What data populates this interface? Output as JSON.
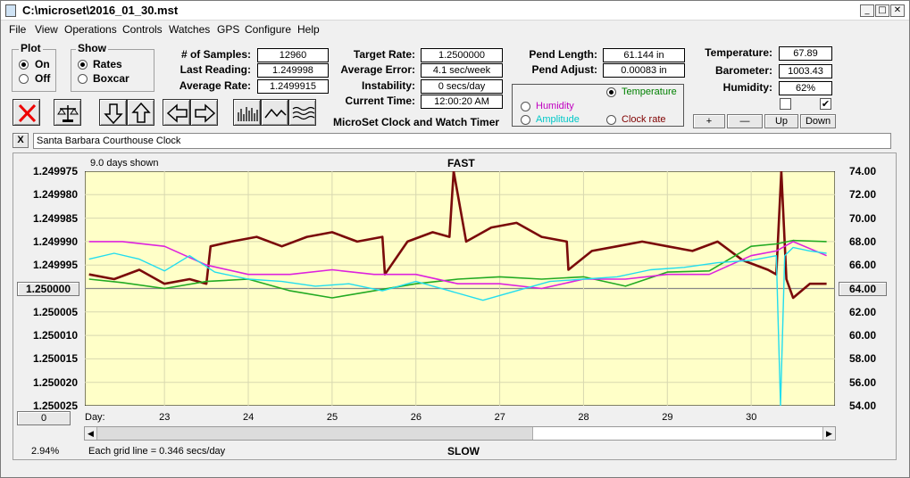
{
  "window": {
    "title": "C:\\microset\\2016_01_30.mst",
    "min_label": "_",
    "max_label": "□",
    "close_label": "✕"
  },
  "menu": [
    "File",
    "View",
    "Operations",
    "Controls",
    "Watches",
    "GPS",
    "Configure",
    "Help"
  ],
  "plot_group": {
    "title": "Plot",
    "on": "On",
    "off": "Off",
    "selected": "On"
  },
  "show_group": {
    "title": "Show",
    "rates": "Rates",
    "boxcar": "Boxcar",
    "selected": "Rates"
  },
  "stats": {
    "samples_label": "# of Samples:",
    "samples": "12960",
    "last_label": "Last Reading:",
    "last": "1.249998",
    "avg_label": "Average Rate:",
    "avg": "1.2499915",
    "target_label": "Target Rate:",
    "target": "1.2500000",
    "avg_err_label": "Average Error:",
    "avg_err": "4.1 sec/week",
    "instab_label": "Instability:",
    "instab": "0 secs/day",
    "time_label": "Current Time:",
    "time": "12:00:20 AM",
    "pend_len_label": "Pend Length:",
    "pend_len": "61.144 in",
    "pend_adj_label": "Pend Adjust:",
    "pend_adj": "0.00083 in",
    "temp_label": "Temperature:",
    "temp": "67.89",
    "baro_label": "Barometer:",
    "baro": "1003.43",
    "hum_label": "Humidity:",
    "hum": "62%"
  },
  "app_name": "MicroSet Clock and Watch Timer",
  "aux_group": {
    "temperature": "Temperature",
    "humidity": "Humidity",
    "amplitude": "Amplitude",
    "clock_rate": "Clock rate",
    "selected": "Temperature"
  },
  "scale_buttons": {
    "plus": "+",
    "minus": "—",
    "up": "Up",
    "down": "Down"
  },
  "check1": false,
  "check2": true,
  "notes": {
    "close": "X",
    "text": "Santa Barbara Courthouse Clock"
  },
  "chart_header": {
    "days_shown": "9.0 days shown",
    "fast": "FAST",
    "slow": "SLOW",
    "grid_note": "Each grid line = 0.346 secs/day",
    "percent": "2.94%",
    "day_label": "Day:",
    "zero_button": "0",
    "left_center": "1.250000",
    "right_center": "64.00"
  },
  "colors": {
    "rate": "#7a0a0a",
    "temperature": "#22aa22",
    "humidity": "#dd22dd",
    "amplitude": "#22ddee",
    "plot_bg": "#ffffc8",
    "temperature_label": "#008000",
    "humidity_label": "#c000c0",
    "amplitude_label": "#00c8c8",
    "clock_rate_label": "#800000"
  },
  "chart_data": {
    "type": "line",
    "title": "FAST",
    "y_left_ticks": [
      "1.249975",
      "1.249980",
      "1.249985",
      "1.249990",
      "1.249995",
      "1.250000",
      "1.250005",
      "1.250010",
      "1.250015",
      "1.250020",
      "1.250025"
    ],
    "y_right_ticks": [
      "74.00",
      "72.00",
      "70.00",
      "68.00",
      "66.00",
      "64.00",
      "62.00",
      "60.00",
      "58.00",
      "56.00",
      "54.00"
    ],
    "y_left_range": [
      1.249975,
      1.250025
    ],
    "y_right_range": [
      54.0,
      74.0
    ],
    "x_ticks": [
      "23",
      "24",
      "25",
      "26",
      "27",
      "28",
      "29",
      "30"
    ],
    "x_range": [
      22.05,
      31.0
    ],
    "series": [
      {
        "name": "Clock rate",
        "axis": "left",
        "x": [
          22.1,
          22.4,
          22.7,
          23.0,
          23.3,
          23.5,
          23.55,
          23.8,
          24.1,
          24.4,
          24.7,
          25.0,
          25.3,
          25.6,
          25.63,
          25.9,
          26.2,
          26.4,
          26.45,
          26.6,
          26.9,
          27.2,
          27.5,
          27.8,
          27.82,
          28.1,
          28.4,
          28.7,
          29.0,
          29.3,
          29.6,
          29.9,
          30.2,
          30.3,
          30.36,
          30.42,
          30.5,
          30.7,
          30.9
        ],
        "y": [
          1.249997,
          1.249998,
          1.249996,
          1.249999,
          1.249998,
          1.249999,
          1.249991,
          1.24999,
          1.249989,
          1.249991,
          1.249989,
          1.249988,
          1.24999,
          1.249989,
          1.249997,
          1.24999,
          1.249988,
          1.249989,
          1.249975,
          1.24999,
          1.249987,
          1.249986,
          1.249989,
          1.24999,
          1.249996,
          1.249992,
          1.249991,
          1.24999,
          1.249991,
          1.249992,
          1.24999,
          1.249994,
          1.249996,
          1.249997,
          1.249975,
          1.249998,
          1.250002,
          1.249999,
          1.249999
        ]
      },
      {
        "name": "Temperature",
        "axis": "right",
        "x": [
          22.1,
          22.5,
          23.0,
          23.5,
          24.0,
          24.5,
          25.0,
          25.5,
          26.0,
          26.5,
          27.0,
          27.5,
          28.0,
          28.5,
          29.0,
          29.5,
          30.0,
          30.3,
          30.5,
          30.9
        ],
        "y": [
          64.8,
          64.5,
          64.0,
          64.6,
          64.8,
          63.8,
          63.2,
          63.8,
          64.4,
          64.8,
          65.0,
          64.8,
          65.0,
          64.2,
          65.4,
          65.5,
          67.6,
          67.8,
          68.1,
          68.0
        ]
      },
      {
        "name": "Humidity",
        "axis": "left",
        "x": [
          22.1,
          22.5,
          23.0,
          23.5,
          24.0,
          24.5,
          25.0,
          25.5,
          26.0,
          26.5,
          27.0,
          27.5,
          28.0,
          28.5,
          29.0,
          29.5,
          30.0,
          30.3,
          30.5,
          30.9
        ],
        "y": [
          1.24999,
          1.24999,
          1.249991,
          1.249995,
          1.249997,
          1.249997,
          1.249996,
          1.249997,
          1.249997,
          1.249999,
          1.249999,
          1.25,
          1.249998,
          1.249998,
          1.249997,
          1.249997,
          1.249993,
          1.249992,
          1.24999,
          1.249993
        ]
      },
      {
        "name": "Amplitude",
        "axis": "right",
        "x": [
          22.1,
          22.4,
          22.7,
          23.0,
          23.3,
          23.6,
          24.0,
          24.4,
          24.8,
          25.2,
          25.6,
          26.0,
          26.4,
          26.8,
          27.2,
          27.6,
          28.0,
          28.4,
          28.8,
          29.2,
          29.6,
          30.0,
          30.3,
          30.35,
          30.4,
          30.5,
          30.7,
          30.9
        ],
        "y": [
          66.5,
          67.0,
          66.5,
          65.5,
          66.8,
          65.4,
          64.8,
          64.6,
          64.2,
          64.4,
          63.8,
          64.6,
          63.8,
          63.0,
          63.8,
          64.6,
          64.8,
          65.0,
          65.6,
          65.8,
          66.2,
          66.4,
          66.8,
          54.0,
          66.8,
          67.5,
          67.2,
          67.0
        ]
      }
    ]
  }
}
